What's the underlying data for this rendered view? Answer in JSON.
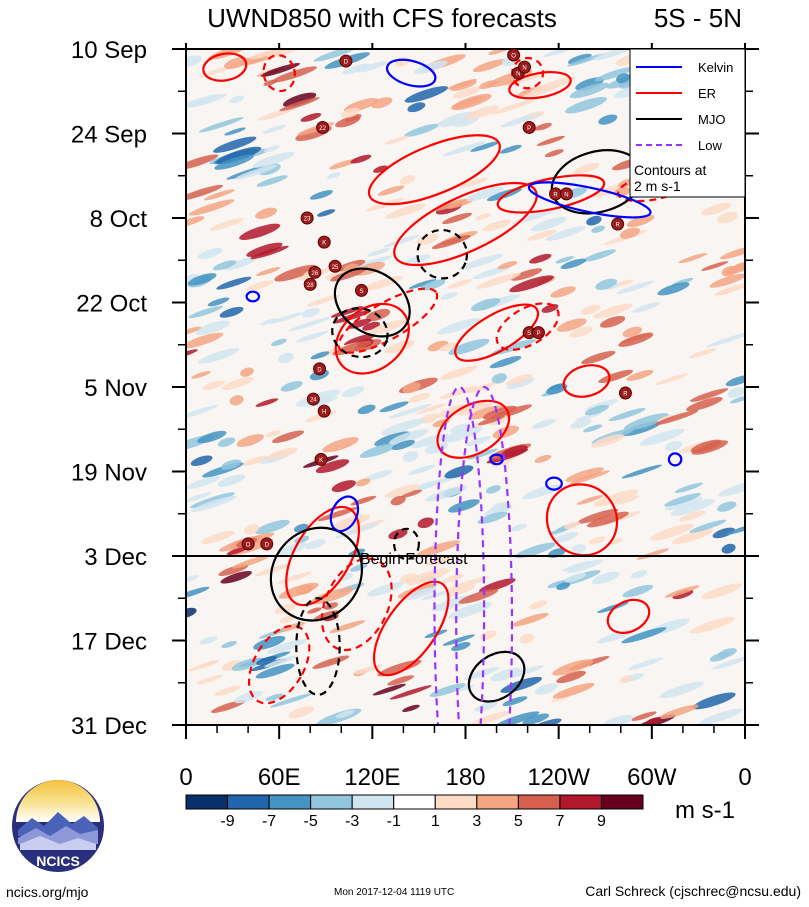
{
  "chart_data": {
    "type": "heatmap",
    "title": "UWND850 with CFS forecasts",
    "region": "5S - 5N",
    "x_tick_labels": [
      "0",
      "60E",
      "120E",
      "180",
      "120W",
      "60W",
      "0"
    ],
    "x_ticks_deg": [
      0,
      60,
      120,
      180,
      240,
      300,
      360
    ],
    "xlim_deg": [
      0,
      360
    ],
    "y_tick_labels": [
      "10 Sep",
      "24 Sep",
      "8 Oct",
      "22 Oct",
      "5 Nov",
      "19 Nov",
      "3 Dec",
      "17 Dec",
      "31 Dec"
    ],
    "y_ticks_day": [
      0,
      14,
      28,
      42,
      56,
      70,
      84,
      98,
      112
    ],
    "ylim_day": [
      0,
      112
    ],
    "forecast_start_day": 84,
    "forecast_label": "Begin Forecast",
    "colorbar": {
      "labels": [
        "-9",
        "-7",
        "-5",
        "-3",
        "-1",
        "1",
        "3",
        "5",
        "7",
        "9"
      ],
      "units": "m s-1",
      "colors": [
        "#08306b",
        "#2166ac",
        "#4393c3",
        "#92c5de",
        "#d1e5f0",
        "#ffffff",
        "#fddbc7",
        "#f4a582",
        "#d6604d",
        "#b2182b",
        "#67001f"
      ]
    },
    "legend": {
      "position": "top-right",
      "entries": [
        {
          "name": "Kelvin",
          "color": "#0000ff",
          "dashed": false
        },
        {
          "name": "ER",
          "color": "#ff0000",
          "dashed": false
        },
        {
          "name": "MJO",
          "color": "#000000",
          "dashed": false
        },
        {
          "name": "Low",
          "color": "#9933ff",
          "dashed": true
        }
      ],
      "note": "Contours at\n2 m s-1"
    },
    "storms": [
      {
        "lon": 103,
        "day": 2,
        "label": "D"
      },
      {
        "lon": 211,
        "day": 1,
        "label": "O"
      },
      {
        "lon": 214,
        "day": 4,
        "label": "N"
      },
      {
        "lon": 218,
        "day": 3,
        "label": "N"
      },
      {
        "lon": 88,
        "day": 13,
        "label": "22"
      },
      {
        "lon": 221,
        "day": 13,
        "label": "P"
      },
      {
        "lon": 238,
        "day": 24,
        "label": "R"
      },
      {
        "lon": 245,
        "day": 24,
        "label": "N"
      },
      {
        "lon": 78,
        "day": 28,
        "label": "23"
      },
      {
        "lon": 89,
        "day": 32,
        "label": "K"
      },
      {
        "lon": 96,
        "day": 36,
        "label": "25"
      },
      {
        "lon": 83,
        "day": 37,
        "label": "26"
      },
      {
        "lon": 80,
        "day": 39,
        "label": "28"
      },
      {
        "lon": 113,
        "day": 40,
        "label": "S"
      },
      {
        "lon": 221,
        "day": 47,
        "label": "S"
      },
      {
        "lon": 227,
        "day": 47,
        "label": "P"
      },
      {
        "lon": 278,
        "day": 29,
        "label": "R"
      },
      {
        "lon": 86,
        "day": 53,
        "label": "D"
      },
      {
        "lon": 82,
        "day": 58,
        "label": "24"
      },
      {
        "lon": 89,
        "day": 60,
        "label": "H"
      },
      {
        "lon": 283,
        "day": 57,
        "label": "R"
      },
      {
        "lon": 87,
        "day": 68,
        "label": "K"
      },
      {
        "lon": 40,
        "day": 82,
        "label": "O"
      },
      {
        "lon": 52,
        "day": 82,
        "label": "D"
      }
    ]
  },
  "footer": {
    "site": "ncics.org/mjo",
    "timestamp": "Mon 2017-12-04 1119 UTC",
    "author": "Carl Schreck (cjschrec@ncsu.edu)",
    "logo_text": "NCICS"
  }
}
